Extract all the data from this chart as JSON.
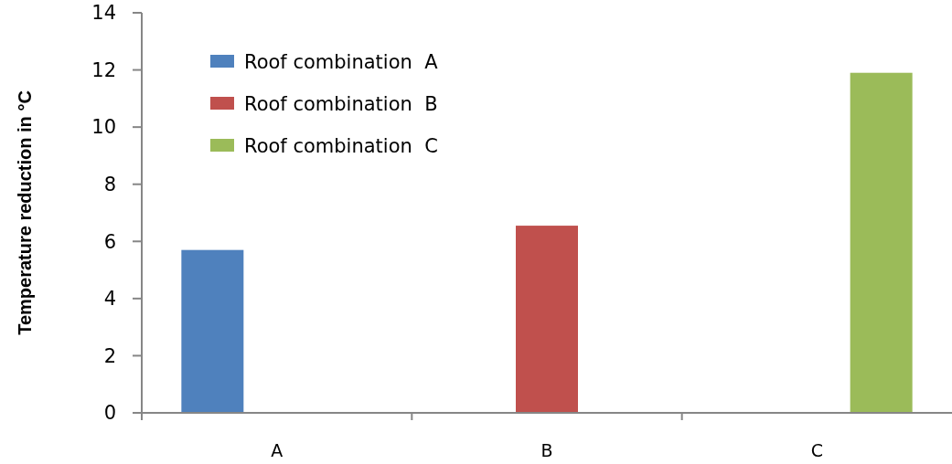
{
  "chart_data": {
    "type": "bar",
    "ylabel": "Temperature reduction in °C",
    "categories": [
      "A",
      "B",
      "C"
    ],
    "series": [
      {
        "name": "Roof combination  A",
        "color": "#4f81bd",
        "values": [
          5.7,
          null,
          null
        ]
      },
      {
        "name": "Roof combination  B",
        "color": "#c0504d",
        "values": [
          null,
          6.55,
          null
        ]
      },
      {
        "name": "Roof combination  C",
        "color": "#9bbb59",
        "values": [
          null,
          null,
          11.9
        ]
      }
    ],
    "ylim": [
      0,
      14
    ],
    "yticks": [
      0,
      2,
      4,
      6,
      8,
      10,
      12,
      14
    ],
    "legend": "top left"
  }
}
